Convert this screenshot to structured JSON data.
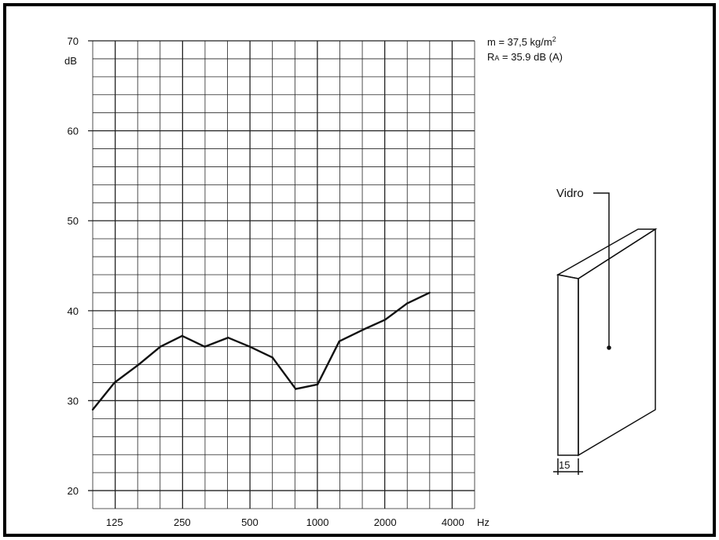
{
  "chart_data": {
    "type": "line",
    "title": "",
    "xlabel": "Hz",
    "ylabel": "dB",
    "x_scale": "log",
    "xlim": [
      100,
      5000
    ],
    "ylim": [
      18,
      70
    ],
    "grid": true,
    "x_ticks": [
      {
        "value": 125,
        "label": "125"
      },
      {
        "value": 250,
        "label": "250"
      },
      {
        "value": 500,
        "label": "500"
      },
      {
        "value": 1000,
        "label": "1000"
      },
      {
        "value": 2000,
        "label": "2000"
      },
      {
        "value": 4000,
        "label": "4000"
      }
    ],
    "y_ticks": [
      {
        "value": 20,
        "label": "20"
      },
      {
        "value": 30,
        "label": "30"
      },
      {
        "value": 40,
        "label": "40"
      },
      {
        "value": 50,
        "label": "50"
      },
      {
        "value": 60,
        "label": "60"
      },
      {
        "value": 70,
        "label": "70"
      }
    ],
    "series": [
      {
        "name": "",
        "color": "#111111",
        "points": [
          {
            "x": 100,
            "y": 29.0
          },
          {
            "x": 125,
            "y": 32.0
          },
          {
            "x": 160,
            "y": 34.0
          },
          {
            "x": 200,
            "y": 36.0
          },
          {
            "x": 250,
            "y": 37.2
          },
          {
            "x": 315,
            "y": 36.0
          },
          {
            "x": 400,
            "y": 37.0
          },
          {
            "x": 500,
            "y": 36.0
          },
          {
            "x": 630,
            "y": 34.8
          },
          {
            "x": 800,
            "y": 31.3
          },
          {
            "x": 1000,
            "y": 31.8
          },
          {
            "x": 1250,
            "y": 36.6
          },
          {
            "x": 1600,
            "y": 37.9
          },
          {
            "x": 2000,
            "y": 39.0
          },
          {
            "x": 2500,
            "y": 40.8
          },
          {
            "x": 3150,
            "y": 42.0
          }
        ]
      }
    ],
    "annotations": {
      "mass_prefix": "m = 37,5 kg/m",
      "mass_sup": "2",
      "rating_prefix": "R",
      "rating_sub": "A",
      "rating_suffix": " = 35.9 dB (A)"
    }
  },
  "diagram": {
    "material_label": "Vidro",
    "thickness_label": "15"
  }
}
